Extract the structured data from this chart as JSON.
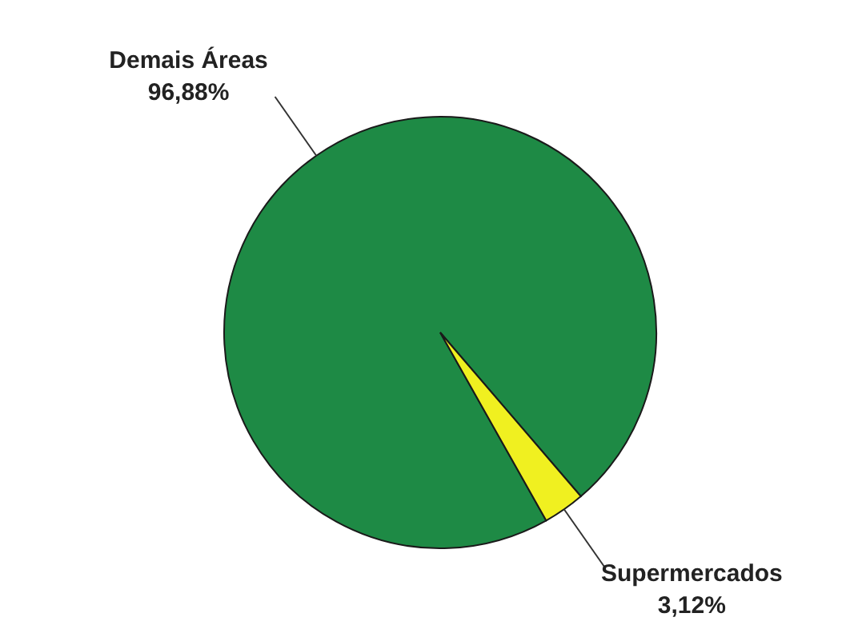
{
  "chart_data": {
    "type": "pie",
    "categories": [
      "Demais Áreas",
      "Supermercados"
    ],
    "values": [
      96.88,
      3.12
    ],
    "colors": [
      "#1e8a45",
      "#f0f020"
    ],
    "value_labels": [
      "96,88%",
      "3,12%"
    ],
    "legend": false
  }
}
